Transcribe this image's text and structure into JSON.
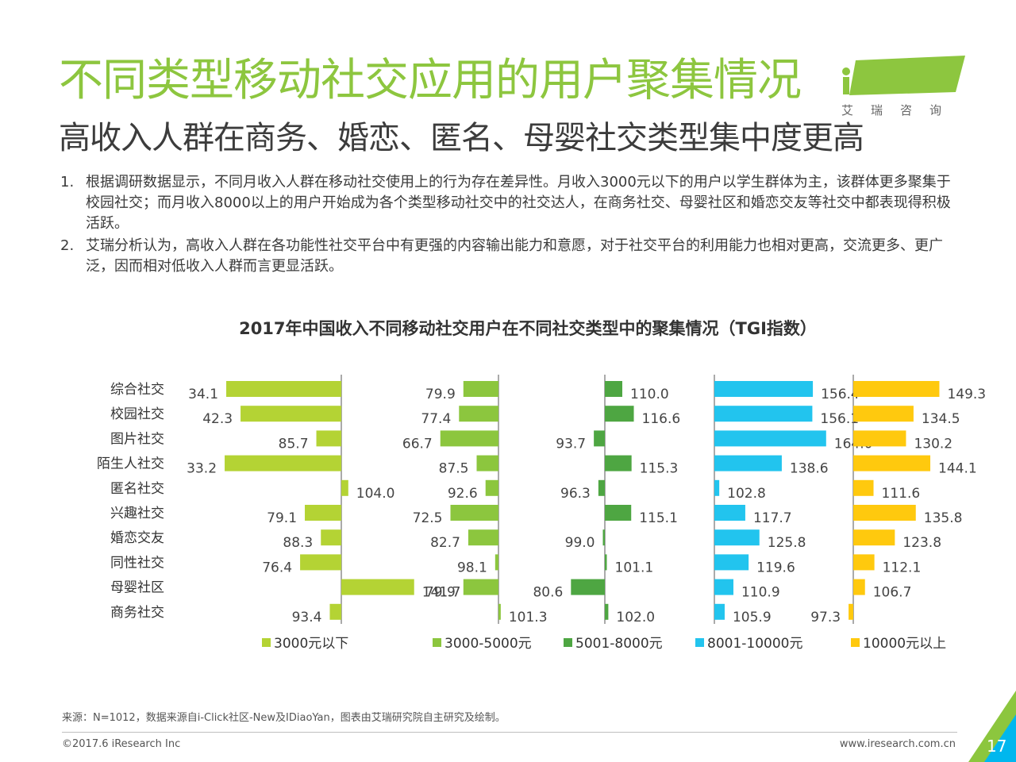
{
  "header": {
    "title": "不同类型移动社交应用的用户聚集情况",
    "subtitle": "高收入人群在商务、婚恋、匿名、母婴社交类型集中度更高"
  },
  "logo": {
    "brand": "iResearch",
    "cn": "艾瑞咨询"
  },
  "notes": [
    {
      "num": "1.",
      "text": "根据调研数据显示，不同月收入人群在移动社交使用上的行为存在差异性。月收入3000元以下的用户以学生群体为主，该群体更多聚集于校园社交；而月收入8000以上的用户开始成为各个类型移动社交中的社交达人，在商务社交、母婴社区和婚恋交友等社交中都表现得积极活跃。"
    },
    {
      "num": "2.",
      "text": "艾瑞分析认为，高收入人群在各功能性社交平台中有更强的内容输出能力和意愿，对于社交平台的利用能力也相对更高，交流更多、更广泛，因而相对低收入人群而言更显活跃。"
    }
  ],
  "chart_data": {
    "type": "bar",
    "orientation": "horizontal",
    "title": "2017年中国收入不同移动社交用户在不同社交类型中的聚集情况（TGI指数）",
    "baseline": 100,
    "categories": [
      "综合社交",
      "校园社交",
      "图片社交",
      "陌生人社交",
      "匿名社交",
      "兴趣社交",
      "婚恋交友",
      "同性社交",
      "母婴社区",
      "商务社交"
    ],
    "series": [
      {
        "name": "3000元以下",
        "color": "#b4d334",
        "values": [
          34.1,
          42.3,
          85.7,
          33.2,
          104.0,
          79.1,
          88.3,
          76.4,
          141.7,
          93.4
        ]
      },
      {
        "name": "3000-5000元",
        "color": "#8cc63e",
        "values": [
          79.9,
          77.4,
          66.7,
          87.5,
          92.6,
          72.5,
          82.7,
          98.1,
          79.9,
          101.3
        ]
      },
      {
        "name": "5001-8000元",
        "color": "#4ea642",
        "values": [
          110.0,
          116.6,
          93.7,
          115.3,
          96.3,
          115.1,
          99.0,
          101.1,
          80.6,
          102.0
        ]
      },
      {
        "name": "8001-10000元",
        "color": "#22c4ee",
        "values": [
          156.4,
          156.1,
          164.0,
          138.6,
          102.8,
          117.7,
          125.8,
          119.6,
          110.9,
          105.9
        ]
      },
      {
        "name": "10000元以上",
        "color": "#ffc90e",
        "values": [
          149.3,
          134.5,
          130.2,
          144.1,
          111.6,
          135.8,
          123.8,
          112.1,
          106.7,
          97.3
        ]
      }
    ],
    "legend_position": "bottom"
  },
  "footer": {
    "source": "来源：N=1012，数据来源自i-Click社区-New及IDiaoYan，图表由艾瑞研究院自主研究及绘制。",
    "copyright": "©2017.6 iResearch Inc",
    "website": "www.iresearch.com.cn",
    "page": "17"
  },
  "colors": {
    "title_green": "#8dc63f",
    "corner_green": "#8cc63e",
    "corner_blue": "#00b7ee"
  }
}
